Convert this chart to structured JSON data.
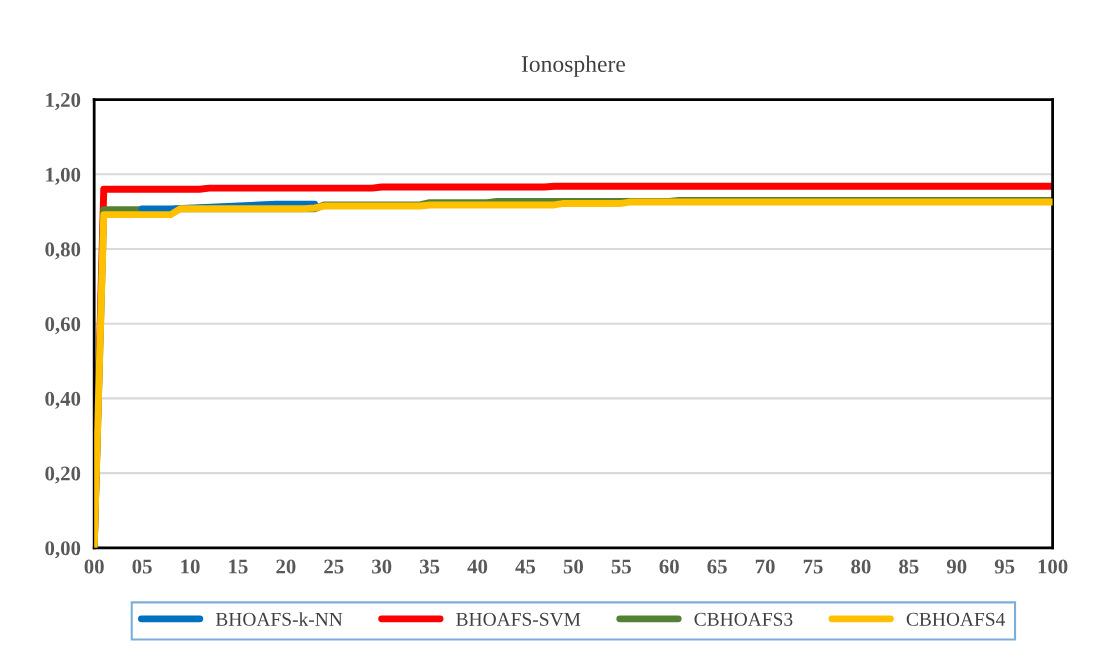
{
  "chart_data": {
    "type": "line",
    "title": "Ionosphere",
    "xlim": [
      0,
      100
    ],
    "xticks": [
      {
        "value": 0,
        "label": "00"
      },
      {
        "value": 5,
        "label": "05"
      },
      10,
      15,
      20,
      25,
      30,
      35,
      40,
      45,
      50,
      55,
      60,
      65,
      70,
      75,
      80,
      85,
      90,
      95,
      100
    ],
    "ylim": [
      0,
      1.2
    ],
    "yticks": [
      {
        "value": 0,
        "label": "0,00"
      },
      {
        "value": 0.2,
        "label": "0,20"
      },
      {
        "value": 0.4,
        "label": "0,40"
      },
      {
        "value": 0.6,
        "label": "0,60"
      },
      {
        "value": 0.8,
        "label": "0,80"
      },
      {
        "value": 1.0,
        "label": "1,00"
      },
      {
        "value": 1.2,
        "label": "1,20"
      }
    ],
    "grid": "y",
    "legend": "bottom",
    "marker": "none",
    "line_style": "solid",
    "series": [
      {
        "name": "BHOAFS-k-NN",
        "color": "#0070c0",
        "x": [
          5,
          8,
          13,
          19,
          23
        ],
        "values": [
          0.907,
          0.907,
          null,
          0.92,
          0.92
        ]
      },
      {
        "name": "BHOAFS-SVM",
        "color": "#ff0000",
        "x": [
          0,
          1,
          11,
          12,
          29,
          30,
          47,
          48,
          100
        ],
        "values": [
          0,
          0.96,
          0.96,
          0.963,
          0.963,
          0.966,
          0.966,
          0.968,
          0.968
        ]
      },
      {
        "name": "CBHOAFS3",
        "color": "#548235",
        "x": [
          0,
          1,
          8,
          9,
          23,
          24,
          34,
          35,
          41,
          42,
          60,
          61,
          100
        ],
        "values": [
          0,
          0.905,
          0.905,
          0.908,
          0.908,
          0.918,
          0.918,
          0.924,
          0.924,
          0.927,
          0.927,
          0.93,
          0.93
        ]
      },
      {
        "name": "CBHOAFS4",
        "color": "#ffc000",
        "x": [
          0,
          1,
          8,
          9,
          22,
          23,
          24,
          34,
          35,
          48,
          49,
          55,
          56,
          100
        ],
        "values": [
          0,
          0.892,
          0.892,
          0.908,
          0.908,
          0.91,
          0.915,
          0.915,
          0.918,
          0.918,
          0.922,
          0.922,
          0.926,
          0.926
        ]
      }
    ]
  }
}
